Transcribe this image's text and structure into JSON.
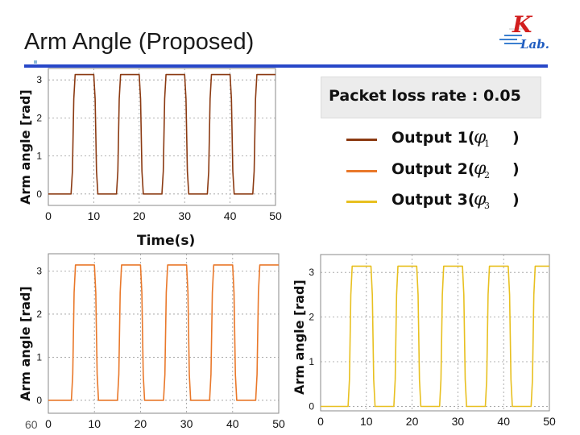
{
  "slide": {
    "title": "Arm Angle (Proposed)",
    "page_number": "60",
    "logo_text_top": "K",
    "logo_text_bottom": "Lab."
  },
  "legend": {
    "title": "Packet loss rate : 0.05",
    "items": [
      {
        "label": "Output 1(",
        "symbol": "φ",
        "sub": "1",
        "close": ")",
        "color": "#8b3a12"
      },
      {
        "label": "Output 2(",
        "symbol": "φ",
        "sub": "2",
        "close": ")",
        "color": "#e9782a"
      },
      {
        "label": "Output 3(",
        "symbol": "φ",
        "sub": "3",
        "close": ")",
        "color": "#e8c020"
      }
    ]
  },
  "chart_data": [
    {
      "type": "line",
      "ylabel": "Arm angle [rad]",
      "xlabel": "Time(s)",
      "xlim": [
        0,
        50
      ],
      "ylim": [
        -0.3,
        3.3
      ],
      "xticks": [
        0,
        10,
        20,
        30,
        40,
        50
      ],
      "yticks": [
        0,
        1,
        2,
        3
      ],
      "grid": true,
      "series": [
        {
          "name": "Output 1",
          "color": "#8b3a12",
          "x": [
            0,
            5.0,
            5.3,
            5.6,
            5.9,
            10.0,
            10.3,
            10.6,
            10.9,
            15.0,
            15.3,
            15.6,
            15.9,
            20.0,
            20.3,
            20.6,
            20.9,
            25.0,
            25.3,
            25.6,
            25.9,
            30.0,
            30.3,
            30.6,
            30.9,
            35.0,
            35.3,
            35.6,
            35.9,
            40.0,
            40.3,
            40.6,
            40.9,
            45.0,
            45.3,
            45.6,
            45.9,
            50.0
          ],
          "y": [
            0.0,
            0.0,
            0.6,
            2.5,
            3.14,
            3.14,
            2.5,
            0.6,
            0.0,
            0.0,
            0.6,
            2.5,
            3.14,
            3.14,
            2.5,
            0.6,
            0.0,
            0.0,
            0.6,
            2.5,
            3.14,
            3.14,
            2.5,
            0.6,
            0.0,
            0.0,
            0.6,
            2.5,
            3.14,
            3.14,
            2.5,
            0.6,
            0.0,
            0.0,
            0.6,
            2.5,
            3.14,
            3.14
          ]
        }
      ]
    },
    {
      "type": "line",
      "ylabel": "Arm angle [rad]",
      "xlim": [
        0,
        50
      ],
      "ylim": [
        -0.3,
        3.4
      ],
      "xticks": [
        0,
        10,
        20,
        30,
        40,
        50
      ],
      "yticks": [
        0,
        1,
        2,
        3
      ],
      "grid": true,
      "series": [
        {
          "name": "Output 2",
          "color": "#e9782a",
          "x": [
            0,
            5.0,
            5.3,
            5.6,
            5.9,
            10.0,
            10.3,
            10.6,
            10.9,
            15.0,
            15.3,
            15.6,
            15.9,
            20.0,
            20.3,
            20.6,
            20.9,
            25.0,
            25.3,
            25.6,
            25.9,
            30.0,
            30.3,
            30.6,
            30.9,
            35.0,
            35.3,
            35.6,
            35.9,
            40.0,
            40.3,
            40.6,
            40.9,
            45.0,
            45.3,
            45.6,
            45.9,
            50.0
          ],
          "y": [
            0.0,
            0.0,
            0.6,
            2.5,
            3.14,
            3.14,
            2.5,
            0.6,
            0.0,
            0.0,
            0.6,
            2.5,
            3.14,
            3.14,
            2.5,
            0.6,
            0.0,
            0.0,
            0.6,
            2.5,
            3.14,
            3.14,
            2.5,
            0.6,
            0.0,
            0.0,
            0.6,
            2.5,
            3.14,
            3.14,
            2.5,
            0.6,
            0.0,
            0.0,
            0.6,
            2.5,
            3.14,
            3.14
          ]
        }
      ]
    },
    {
      "type": "line",
      "ylabel": "Arm angle [rad]",
      "xlim": [
        0,
        50
      ],
      "ylim": [
        -0.1,
        3.4
      ],
      "xticks": [
        0,
        10,
        20,
        30,
        40,
        50
      ],
      "yticks": [
        0,
        1,
        2,
        3
      ],
      "grid": true,
      "series": [
        {
          "name": "Output 3",
          "color": "#e8c020",
          "x": [
            0,
            6.0,
            6.3,
            6.6,
            6.9,
            11.0,
            11.3,
            11.6,
            11.9,
            16.0,
            16.3,
            16.6,
            16.9,
            21.0,
            21.3,
            21.6,
            21.9,
            26.0,
            26.3,
            26.6,
            26.9,
            31.0,
            31.3,
            31.6,
            31.9,
            36.0,
            36.3,
            36.6,
            36.9,
            41.0,
            41.3,
            41.6,
            41.9,
            46.0,
            46.3,
            46.6,
            46.9,
            50.0
          ],
          "y": [
            0.0,
            0.0,
            0.6,
            2.5,
            3.14,
            3.14,
            2.5,
            0.6,
            0.0,
            0.0,
            0.6,
            2.5,
            3.14,
            3.14,
            2.5,
            0.6,
            0.0,
            0.0,
            0.6,
            2.5,
            3.14,
            3.14,
            2.5,
            0.6,
            0.0,
            0.0,
            0.6,
            2.5,
            3.14,
            3.14,
            2.5,
            0.6,
            0.0,
            0.0,
            0.6,
            2.5,
            3.14,
            3.14
          ]
        }
      ]
    }
  ]
}
